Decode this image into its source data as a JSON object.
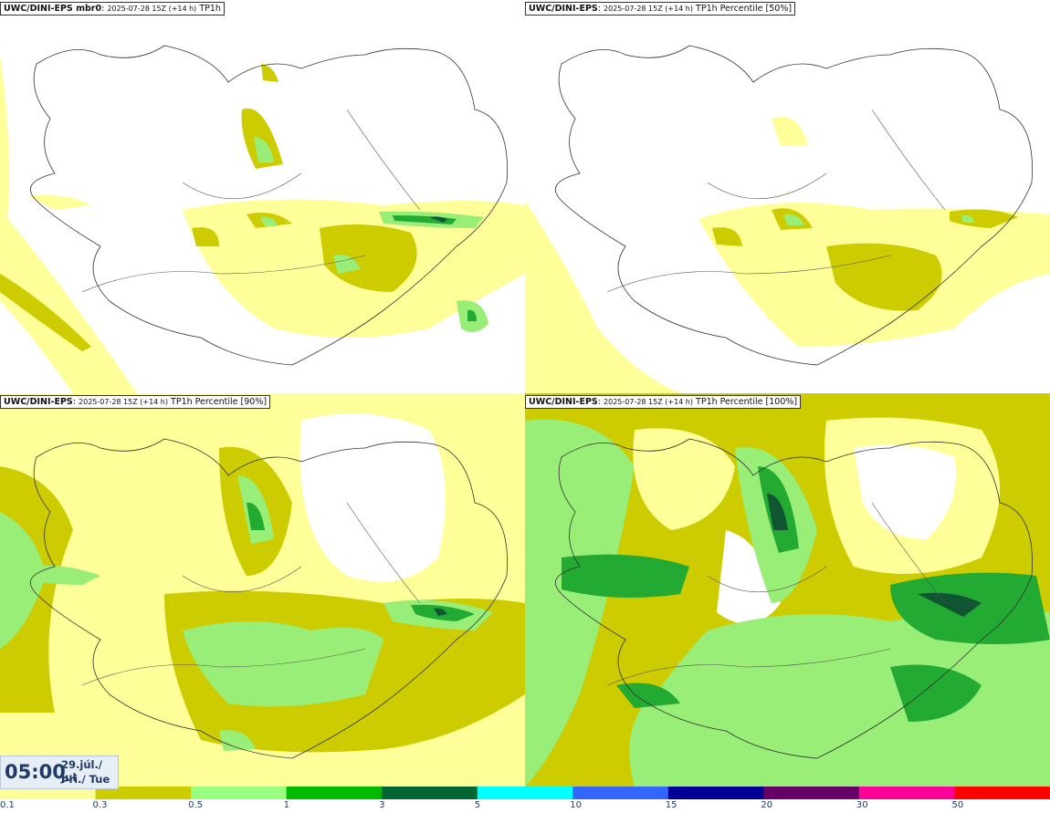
{
  "panels": [
    {
      "model": "UWC/DINI-EPS mbr0",
      "run": "2025-07-28 15Z (+14 h)",
      "param": "TP1h"
    },
    {
      "model": "UWC/DINI-EPS",
      "run": "2025-07-28 15Z (+14 h)",
      "param": "TP1h Percentile [50%]"
    },
    {
      "model": "UWC/DINI-EPS",
      "run": "2025-07-28 15Z (+14 h)",
      "param": "TP1h Percentile [90%]"
    },
    {
      "model": "UWC/DINI-EPS",
      "run": "2025-07-28 15Z (+14 h)",
      "param": "TP1h Percentile [100%]"
    }
  ],
  "time": {
    "hour": "05:00",
    "date": "29.júl./ Jul",
    "day": "Þri./ Tue"
  },
  "colorbar": {
    "ticks": [
      "0.1",
      "0.3",
      "0.5",
      "1",
      "3",
      "5",
      "10",
      "15",
      "20",
      "30",
      "50"
    ],
    "colors": [
      "#ffff99",
      "#cccc00",
      "#99ff80",
      "#00bb00",
      "#006633",
      "#00ffff",
      "#3366ff",
      "#000099",
      "#660066",
      "#ff0099",
      "#ff0000"
    ]
  },
  "colors": {
    "c01": "#ffff99",
    "c03": "#cccc00",
    "c05": "#99ee77",
    "c1": "#22aa33",
    "c3": "#115533"
  }
}
